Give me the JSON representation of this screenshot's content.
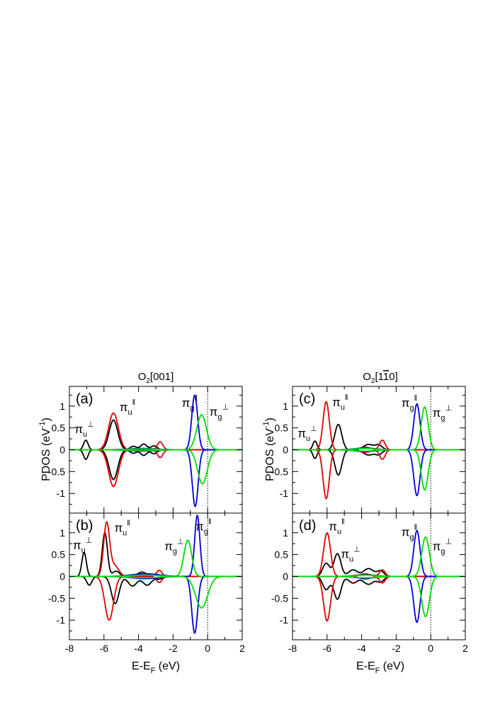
{
  "figure": {
    "left_title_main": "O",
    "left_title_sub": "2",
    "left_title_rest": "[001]",
    "right_title_main": "O",
    "right_title_sub": "2",
    "right_title_pre": "[1",
    "right_title_bar": "1",
    "right_title_post": "0]",
    "ylabel_main": "PDOS (eV",
    "ylabel_sup": "-1",
    "ylabel_close": ")",
    "xlabel_main": "E-E",
    "xlabel_sub": "F",
    "xlabel_units": " (eV)"
  },
  "chart_data": {
    "type": "line",
    "xlim": [
      -8,
      2
    ],
    "ylim": [
      -1.45,
      1.45
    ],
    "xticks": [
      "-8",
      "-6",
      "-4",
      "-2",
      "0",
      "2"
    ],
    "yticks": [
      "1",
      "0.5",
      "0",
      "-0.5",
      "-1"
    ],
    "fermi_line_x": 0,
    "colors": {
      "black": "#000000",
      "red": "#e00000",
      "blue": "#0000dd",
      "green": "#00dd00"
    },
    "panels": [
      {
        "id": "a",
        "label": "(a)",
        "series": [
          {
            "color": "#000000",
            "up": [
              [
                -7.05,
                0.22,
                0.13
              ],
              [
                -5.45,
                0.68,
                0.25
              ],
              [
                -4.3,
                0.08,
                0.18
              ],
              [
                -3.7,
                0.13,
                0.18
              ],
              [
                -3.1,
                0.09,
                0.18
              ]
            ],
            "down": [
              [
                -7.05,
                -0.22,
                0.13
              ],
              [
                -5.45,
                -0.68,
                0.25
              ],
              [
                -4.3,
                -0.08,
                0.18
              ],
              [
                -3.7,
                -0.13,
                0.18
              ],
              [
                -3.1,
                -0.09,
                0.18
              ]
            ]
          },
          {
            "color": "#e00000",
            "up": [
              [
                -5.45,
                0.84,
                0.28
              ],
              [
                -2.75,
                0.18,
                0.16
              ]
            ],
            "down": [
              [
                -5.45,
                -0.84,
                0.28
              ],
              [
                -2.75,
                -0.18,
                0.16
              ]
            ]
          },
          {
            "color": "#0000dd",
            "up": [
              [
                -0.75,
                1.25,
                0.17
              ],
              [
                -3.8,
                0.03,
                0.8
              ]
            ],
            "down": [
              [
                -0.72,
                -1.3,
                0.17
              ],
              [
                -3.8,
                -0.03,
                0.8
              ]
            ]
          },
          {
            "color": "#00dd00",
            "up": [
              [
                -0.35,
                0.8,
                0.28
              ],
              [
                -3.8,
                0.02,
                0.8
              ]
            ],
            "down": [
              [
                -0.3,
                -0.78,
                0.28
              ],
              [
                -3.8,
                -0.02,
                0.8
              ]
            ]
          }
        ],
        "annotations": [
          {
            "text": "π",
            "sub": "u",
            "sup": "⊥",
            "x": -7.7,
            "y": 0.38
          },
          {
            "text": "π",
            "sub": "u",
            "sup": "‖",
            "x": -5.1,
            "y": 0.88
          },
          {
            "text": "π",
            "sub": "g",
            "sup": "‖",
            "x": -1.5,
            "y": 0.98
          },
          {
            "text": "π",
            "sub": "g",
            "sup": "⊥",
            "x": 0.1,
            "y": 0.78
          }
        ]
      },
      {
        "id": "b",
        "label": "(b)",
        "series": [
          {
            "color": "#000000",
            "up": [
              [
                -7.15,
                0.55,
                0.13
              ],
              [
                -5.95,
                1.0,
                0.15
              ],
              [
                -5.3,
                0.12,
                0.2
              ],
              [
                -3.8,
                0.1,
                0.25
              ],
              [
                -3.0,
                0.05,
                0.2
              ]
            ],
            "down": [
              [
                -6.85,
                -0.2,
                0.15
              ],
              [
                -5.35,
                -0.62,
                0.22
              ],
              [
                -4.35,
                -0.22,
                0.25
              ],
              [
                -3.5,
                -0.2,
                0.25
              ],
              [
                -2.8,
                -0.06,
                0.2
              ]
            ]
          },
          {
            "color": "#e00000",
            "up": [
              [
                -5.85,
                1.2,
                0.17
              ],
              [
                -5.4,
                0.25,
                0.25
              ],
              [
                -2.8,
                0.14,
                0.16
              ]
            ],
            "down": [
              [
                -5.7,
                -1.0,
                0.25
              ],
              [
                -2.8,
                -0.14,
                0.16
              ]
            ]
          },
          {
            "color": "#0000dd",
            "up": [
              [
                -0.6,
                1.4,
                0.15
              ],
              [
                -3.6,
                0.06,
                0.8
              ]
            ],
            "down": [
              [
                -0.75,
                -1.3,
                0.17
              ],
              [
                -3.6,
                -0.05,
                0.8
              ]
            ]
          },
          {
            "color": "#00dd00",
            "up": [
              [
                -1.15,
                0.83,
                0.22
              ],
              [
                -3.6,
                0.03,
                0.8
              ]
            ],
            "down": [
              [
                -0.35,
                -0.72,
                0.35
              ],
              [
                -3.6,
                -0.03,
                0.8
              ]
            ]
          }
        ],
        "annotations": [
          {
            "text": "π",
            "sub": "u",
            "sup": "⊥",
            "x": -7.8,
            "y": 0.62
          },
          {
            "text": "π",
            "sub": "u",
            "sup": "‖",
            "x": -5.4,
            "y": 1.02
          },
          {
            "text": "π",
            "sub": "g",
            "sup": "⊥",
            "x": -2.5,
            "y": 0.6
          },
          {
            "text": "π",
            "sub": "g",
            "sup": "‖",
            "x": -0.7,
            "y": 1.05
          }
        ]
      },
      {
        "id": "c",
        "label": "(c)",
        "series": [
          {
            "color": "#000000",
            "up": [
              [
                -6.7,
                0.2,
                0.12
              ],
              [
                -5.35,
                0.58,
                0.2
              ],
              [
                -3.6,
                0.12,
                0.3
              ],
              [
                -3.0,
                0.1,
                0.2
              ]
            ],
            "down": [
              [
                -6.7,
                -0.2,
                0.12
              ],
              [
                -5.35,
                -0.58,
                0.2
              ],
              [
                -3.6,
                -0.12,
                0.3
              ],
              [
                -3.0,
                -0.1,
                0.2
              ]
            ]
          },
          {
            "color": "#e00000",
            "up": [
              [
                -6.05,
                1.1,
                0.18
              ],
              [
                -2.8,
                0.22,
                0.16
              ],
              [
                -3.8,
                0.06,
                0.3
              ]
            ],
            "down": [
              [
                -6.05,
                -1.12,
                0.18
              ],
              [
                -2.8,
                -0.22,
                0.16
              ],
              [
                -3.8,
                -0.06,
                0.3
              ]
            ]
          },
          {
            "color": "#0000dd",
            "up": [
              [
                -0.8,
                1.05,
                0.18
              ],
              [
                -3.8,
                0.04,
                0.6
              ]
            ],
            "down": [
              [
                -0.8,
                -1.05,
                0.18
              ],
              [
                -3.8,
                -0.04,
                0.6
              ]
            ]
          },
          {
            "color": "#00dd00",
            "up": [
              [
                -0.35,
                0.98,
                0.2
              ],
              [
                -3.8,
                0.03,
                0.6
              ]
            ],
            "down": [
              [
                -0.35,
                -0.92,
                0.2
              ],
              [
                -3.8,
                -0.03,
                0.6
              ]
            ]
          }
        ],
        "annotations": [
          {
            "text": "π",
            "sub": "u",
            "sup": "⊥",
            "x": -7.7,
            "y": 0.28
          },
          {
            "text": "π",
            "sub": "u",
            "sup": "‖",
            "x": -5.7,
            "y": 1.0
          },
          {
            "text": "π",
            "sub": "g",
            "sup": "‖",
            "x": -1.7,
            "y": 0.98
          },
          {
            "text": "π",
            "sub": "g",
            "sup": "⊥",
            "x": 0.1,
            "y": 0.75
          }
        ]
      },
      {
        "id": "d",
        "label": "(d)",
        "series": [
          {
            "color": "#000000",
            "up": [
              [
                -6.05,
                0.3,
                0.2
              ],
              [
                -5.4,
                0.52,
                0.2
              ],
              [
                -4.5,
                0.15,
                0.25
              ],
              [
                -3.6,
                0.18,
                0.3
              ],
              [
                -2.9,
                0.12,
                0.2
              ]
            ],
            "down": [
              [
                -6.05,
                -0.3,
                0.2
              ],
              [
                -5.4,
                -0.52,
                0.2
              ],
              [
                -4.5,
                -0.15,
                0.25
              ],
              [
                -3.6,
                -0.18,
                0.3
              ],
              [
                -2.9,
                -0.12,
                0.2
              ]
            ]
          },
          {
            "color": "#e00000",
            "up": [
              [
                -6.0,
                1.0,
                0.2
              ],
              [
                -2.8,
                0.15,
                0.16
              ],
              [
                -3.8,
                0.06,
                0.3
              ]
            ],
            "down": [
              [
                -6.0,
                -1.02,
                0.2
              ],
              [
                -2.8,
                -0.15,
                0.16
              ],
              [
                -3.8,
                -0.06,
                0.3
              ]
            ]
          },
          {
            "color": "#0000dd",
            "up": [
              [
                -0.8,
                1.05,
                0.18
              ],
              [
                -3.8,
                0.04,
                0.6
              ]
            ],
            "down": [
              [
                -0.8,
                -1.05,
                0.18
              ],
              [
                -3.8,
                -0.04,
                0.6
              ]
            ]
          },
          {
            "color": "#00dd00",
            "up": [
              [
                -0.3,
                0.9,
                0.22
              ],
              [
                -3.8,
                0.03,
                0.6
              ]
            ],
            "down": [
              [
                -0.3,
                -0.92,
                0.22
              ],
              [
                -3.8,
                -0.03,
                0.6
              ]
            ]
          }
        ],
        "annotations": [
          {
            "text": "π",
            "sub": "u",
            "sup": "‖",
            "x": -5.9,
            "y": 1.05
          },
          {
            "text": "π",
            "sub": "u",
            "sup": "⊥",
            "x": -5.2,
            "y": 0.42
          },
          {
            "text": "π",
            "sub": "g",
            "sup": "‖",
            "x": -1.7,
            "y": 0.92
          },
          {
            "text": "π",
            "sub": "g",
            "sup": "⊥",
            "x": 0.1,
            "y": 0.6
          }
        ]
      }
    ]
  }
}
